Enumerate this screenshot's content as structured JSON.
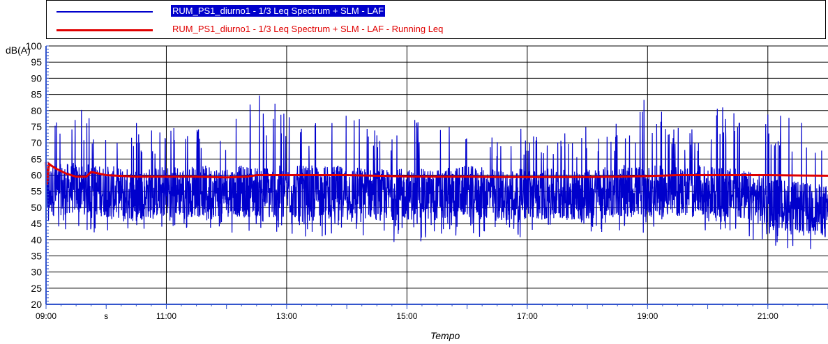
{
  "legend": {
    "items": [
      {
        "label": "RUM_PS1_diurno1 - 1/3 Leq Spectrum + SLM - LAF",
        "color": "#0000cc",
        "selected": true
      },
      {
        "label": "RUM_PS1_diurno1 - 1/3 Leq Spectrum + SLM - LAF - Running Leq",
        "color": "#e00000",
        "selected": false
      }
    ]
  },
  "chart_data": {
    "type": "line",
    "title": "",
    "xlabel": "Tempo",
    "ylabel": "dB(A)",
    "ylim": [
      20,
      100
    ],
    "y_ticks": [
      20,
      25,
      30,
      35,
      40,
      45,
      50,
      55,
      60,
      65,
      70,
      75,
      80,
      85,
      90,
      95,
      100
    ],
    "xlim": [
      "09:00",
      "22:00"
    ],
    "x_ticks": [
      "09:00",
      "s",
      "11:00",
      "13:00",
      "15:00",
      "17:00",
      "19:00",
      "21:00"
    ],
    "grid": true,
    "legend_position": "top",
    "series": [
      {
        "name": "RUM_PS1_diurno1 - 1/3 Leq Spectrum + SLM - LAF",
        "color": "#0000cc",
        "x": [
          "09:00",
          "09:30",
          "10:00",
          "10:30",
          "11:00",
          "11:30",
          "12:00",
          "12:30",
          "13:00",
          "13:30",
          "14:00",
          "14:30",
          "15:00",
          "15:30",
          "16:00",
          "16:30",
          "17:00",
          "17:30",
          "18:00",
          "18:30",
          "19:00",
          "19:30",
          "20:00",
          "20:30",
          "21:00",
          "21:30",
          "22:00"
        ],
        "min": [
          43,
          42,
          42,
          43,
          44,
          43,
          42,
          43,
          41,
          41,
          41,
          40,
          38,
          41,
          41,
          40,
          41,
          45,
          42,
          42,
          42,
          42,
          43,
          42,
          38,
          37,
          35
        ],
        "max": [
          80,
          81,
          77,
          77,
          75,
          76,
          78,
          85,
          83,
          78,
          80,
          76,
          78,
          78,
          79,
          74,
          76,
          73,
          76,
          78,
          84,
          75,
          79,
          84,
          80,
          78,
          66
        ],
        "median": [
          55,
          56,
          55,
          54,
          55,
          55,
          55,
          55,
          55,
          55,
          55,
          54,
          54,
          54,
          55,
          54,
          54,
          54,
          54,
          55,
          55,
          55,
          55,
          54,
          52,
          50,
          49
        ]
      },
      {
        "name": "RUM_PS1_diurno1 - 1/3 Leq Spectrum + SLM - LAF - Running Leq",
        "color": "#e00000",
        "x": [
          "09:00",
          "09:01",
          "09:03",
          "09:05",
          "09:10",
          "09:20",
          "09:30",
          "09:40",
          "09:45",
          "10:00",
          "10:30",
          "11:00",
          "11:30",
          "12:00",
          "12:20",
          "12:30",
          "13:00",
          "13:30",
          "14:00",
          "14:30",
          "15:00",
          "15:30",
          "16:00",
          "16:30",
          "17:00",
          "17:30",
          "18:00",
          "18:30",
          "19:00",
          "19:30",
          "20:00",
          "20:30",
          "21:00",
          "21:30",
          "22:00"
        ],
        "values": [
          64,
          57,
          63.5,
          63,
          62,
          60.5,
          59.5,
          59.5,
          61,
          60,
          59.5,
          59.5,
          59.5,
          59.3,
          59.5,
          60,
          60,
          60,
          60,
          59.8,
          59.6,
          59.5,
          59.5,
          59.4,
          59.4,
          59.4,
          59.4,
          59.5,
          59.7,
          60,
          60,
          60,
          60,
          59.9,
          59.8
        ]
      }
    ]
  }
}
